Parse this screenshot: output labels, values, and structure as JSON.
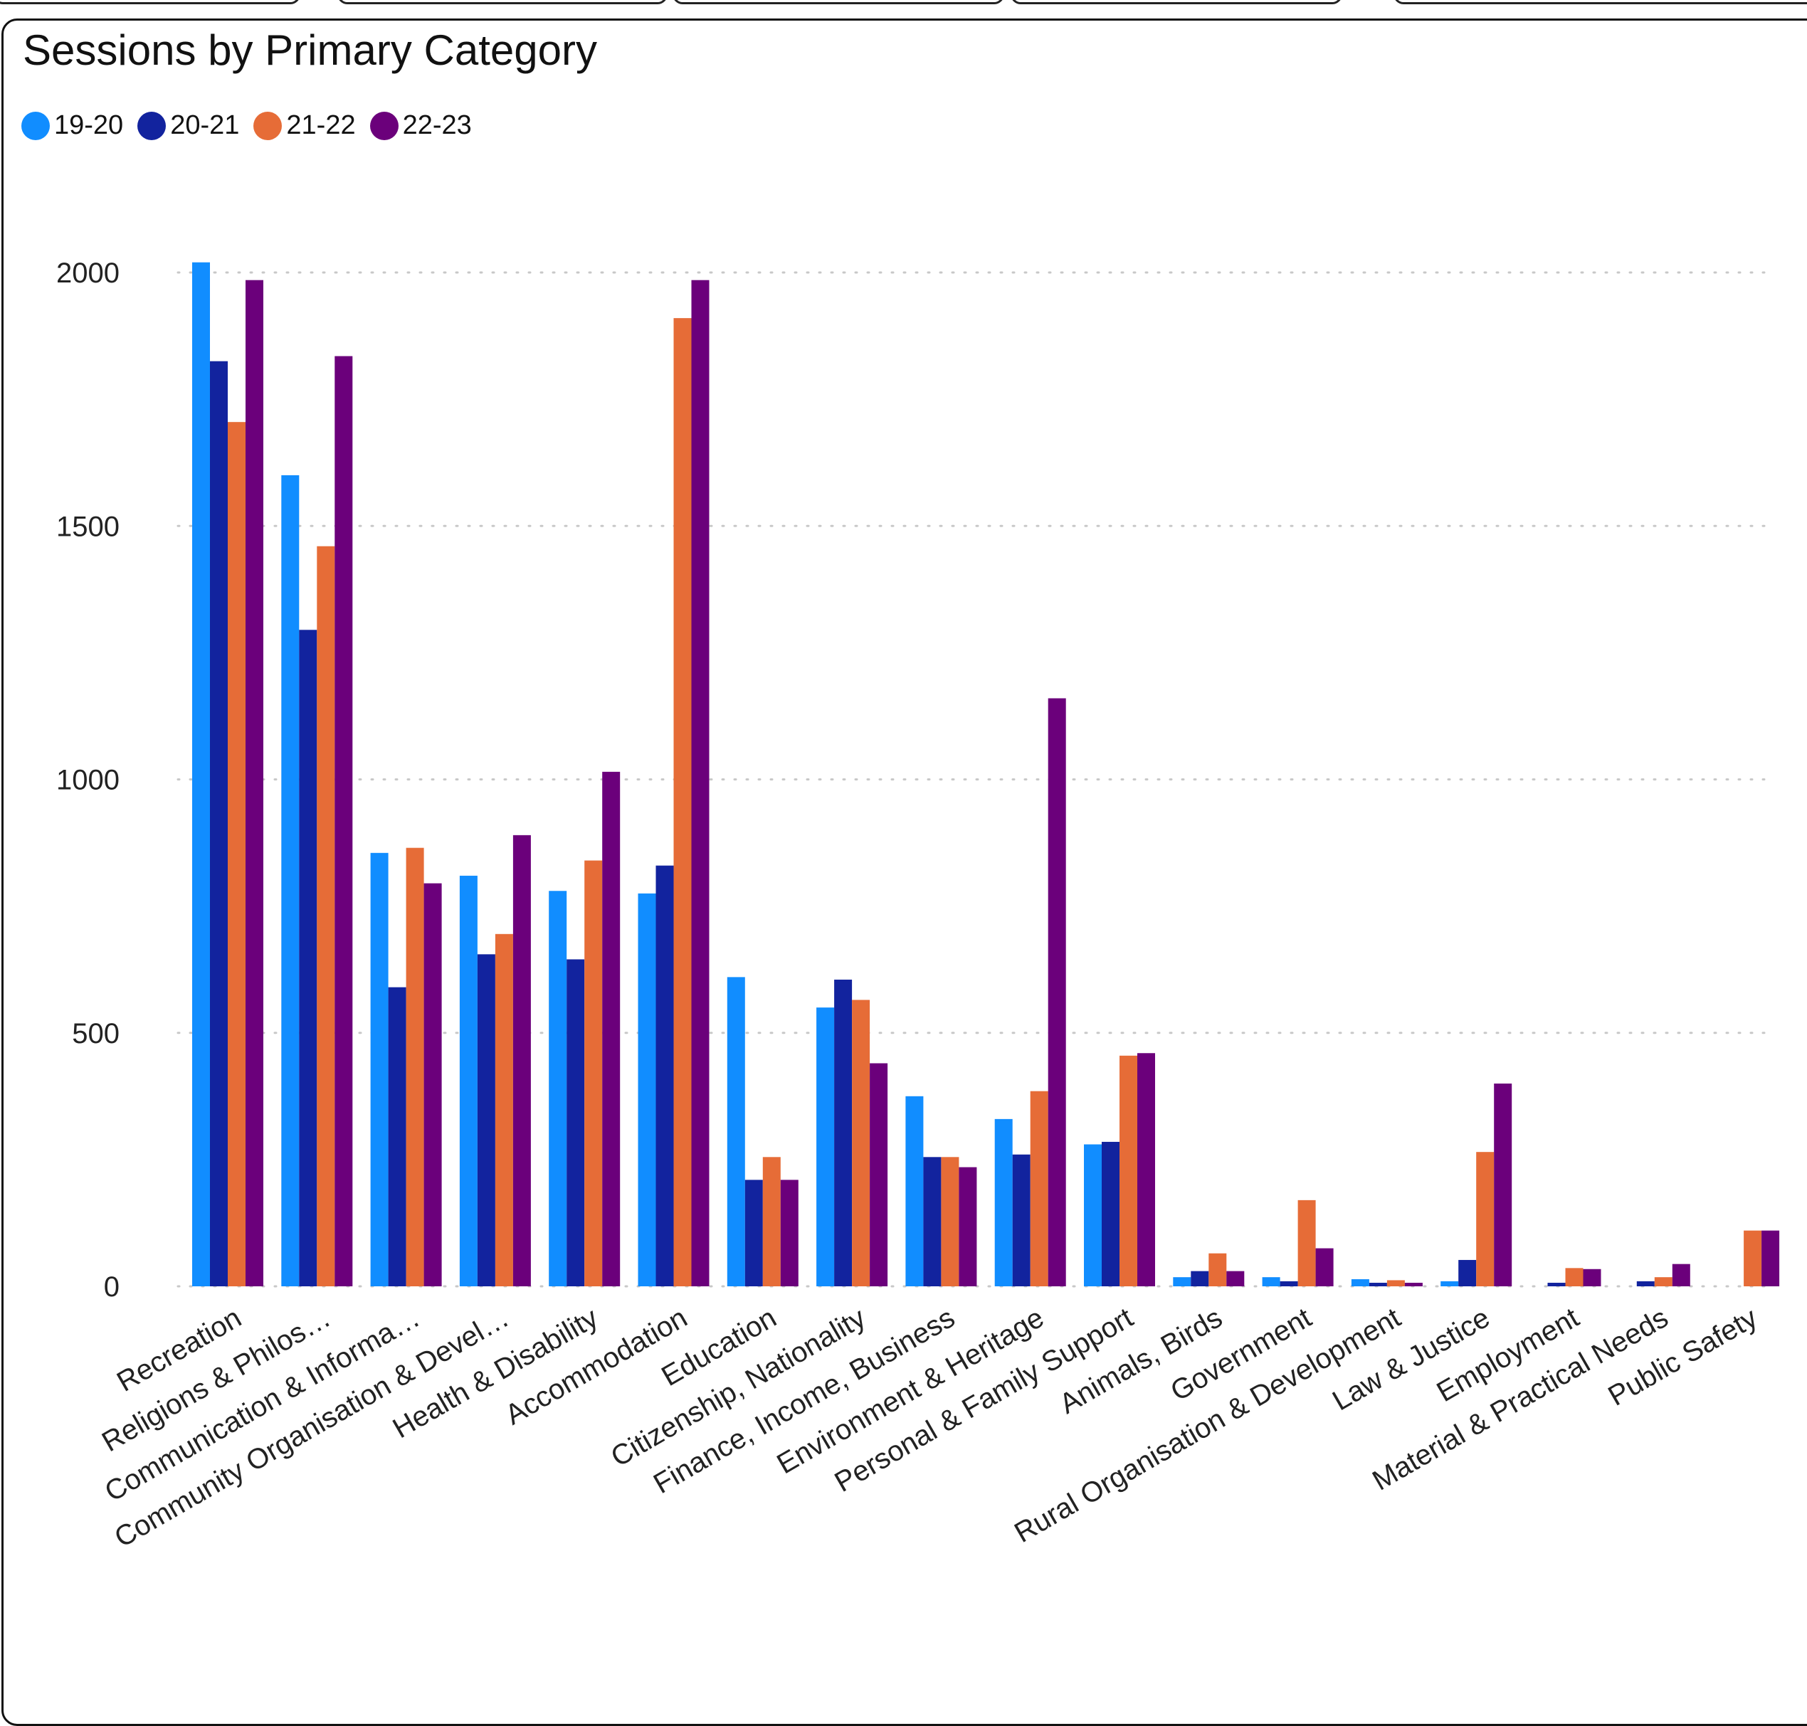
{
  "colors": {
    "s1": "#118DFF",
    "s2": "#12239E",
    "s3": "#E66C37",
    "s4": "#6B007B"
  },
  "chart_data": {
    "type": "bar",
    "title": "Sessions by Primary Category",
    "xlabel": "",
    "ylabel": "",
    "ylim": [
      0,
      2000
    ],
    "yticks": [
      0,
      500,
      1000,
      1500,
      2000
    ],
    "grid": true,
    "legend_position": "top-left",
    "categories": [
      "Recreation",
      "Religions & Philos…",
      "Communication & Informa…",
      "Community Organisation & Devel…",
      "Health & Disability",
      "Accommodation",
      "Education",
      "Citizenship, Nationality",
      "Finance, Income, Business",
      "Environment & Heritage",
      "Personal & Family Support",
      "Animals, Birds",
      "Government",
      "Rural Organisation & Development",
      "Law & Justice",
      "Employment",
      "Material & Practical Needs",
      "Public Safety"
    ],
    "series": [
      {
        "name": "19-20",
        "values": [
          2020,
          1600,
          855,
          810,
          780,
          775,
          610,
          550,
          375,
          330,
          280,
          18,
          18,
          14,
          10,
          0,
          0,
          0
        ]
      },
      {
        "name": "20-21",
        "values": [
          1825,
          1295,
          590,
          655,
          645,
          830,
          210,
          605,
          255,
          260,
          285,
          30,
          10,
          7,
          52,
          7,
          10,
          0
        ]
      },
      {
        "name": "21-22",
        "values": [
          1705,
          1460,
          865,
          695,
          840,
          1910,
          255,
          565,
          255,
          385,
          455,
          65,
          170,
          12,
          265,
          36,
          18,
          110
        ]
      },
      {
        "name": "22-23",
        "values": [
          1985,
          1835,
          795,
          890,
          1015,
          1985,
          210,
          440,
          235,
          1160,
          460,
          30,
          75,
          7,
          400,
          34,
          44,
          110
        ]
      }
    ]
  }
}
